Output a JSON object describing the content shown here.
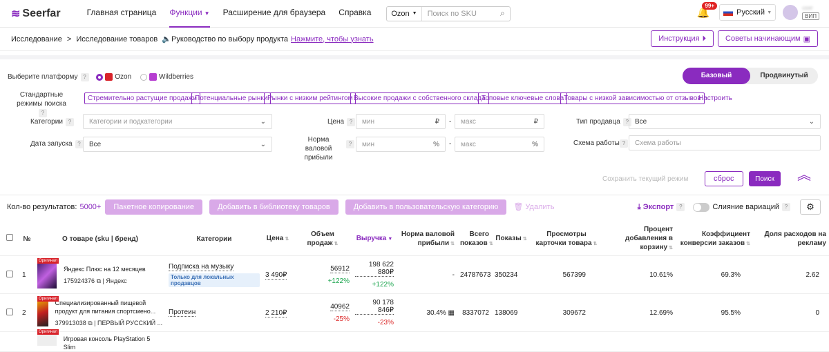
{
  "header": {
    "logo": "Seerfar",
    "nav": [
      {
        "label": "Главная страница"
      },
      {
        "label": "Функции"
      },
      {
        "label": "Расширение для браузера"
      },
      {
        "label": "Справка"
      }
    ],
    "search": {
      "platform": "Ozon",
      "placeholder": "Поиск по SKU"
    },
    "notification_badge": "99+",
    "language": "Русский",
    "user": {
      "name": "user",
      "vip": "ВИП"
    }
  },
  "breadcrumb": {
    "root": "Исследование",
    "sep": ">",
    "current": "Исследование товаров",
    "guide": "Руководство по выбору продукта",
    "guide_link": "Нажмите, чтобы узнать",
    "instruction": "Инструкция",
    "tips": "Советы начинающим"
  },
  "filters": {
    "platform_label": "Выберите платформу",
    "platform_ozon": "Ozon",
    "platform_wb": "Wildberries",
    "modes_label": "Стандартные режимы поиска",
    "modes": [
      "Стремительно растущие продажи",
      "Потенциальные рынки",
      "Рынки с низким рейтингом",
      "Высокие продажи с собственного склада",
      "Топовые ключевые слова",
      "Товары с низкой зависимостью от отзывов"
    ],
    "configure": "Настроить",
    "category_label": "Категории",
    "category_placeholder": "Категории и подкатегории",
    "price_label": "Цена",
    "min": "мин",
    "max": "макс",
    "currency": "₽",
    "dash": "-",
    "seller_label": "Тип продавца",
    "seller_value": "Все",
    "launch_label": "Дата запуска",
    "launch_value": "Все",
    "margin_label": "Норма валовой прибыли",
    "percent": "%",
    "scheme_label": "Схема работы",
    "scheme_placeholder": "Схема работы",
    "basic": "Базовый",
    "advanced": "Продвинутый",
    "save_mode": "Сохранить текущий режим",
    "reset": "сброс",
    "search": "Поиск"
  },
  "actions": {
    "results_label": "Кол-во результатов:",
    "results_count": "5000+",
    "batch_copy": "Пакетное копирование",
    "add_library": "Добавить в библиотеку товаров",
    "add_category": "Добавить в пользовательскую категорию",
    "delete": "Удалить",
    "export": "Экспорт",
    "merge": "Слияние вариаций"
  },
  "table": {
    "columns": {
      "no": "№",
      "about": "О товаре (sku | бренд)",
      "category": "Категории",
      "price": "Цена",
      "sales": "Объем продаж",
      "revenue": "Выручка",
      "margin": "Норма валовой прибыли",
      "total_views": "Всего показов",
      "views": "Показы",
      "card_views": "Просмотры карточки товара",
      "cart_rate": "Процент добавления в корзину",
      "conversion": "Коэффициент конверсии заказов",
      "ad_share": "Доля расходов на рекламу"
    },
    "rows": [
      {
        "no": "1",
        "badge": "Оригинал",
        "name": "Яндекс Плюс на 12 месяцев",
        "sku": "175924376",
        "brand": "Яндекс",
        "category": "Подписка на музыку",
        "tag": "Только для локальных продавцов",
        "price": "3 490₽",
        "sales": "56912",
        "sales_delta": "+122%",
        "revenue": "198 622 880₽",
        "revenue_delta": "+122%",
        "margin": "-",
        "total_views": "24787673",
        "views": "350234",
        "card_views": "567399",
        "cart_rate": "10.61%",
        "conversion": "69.3%",
        "ad_share": "2.62"
      },
      {
        "no": "2",
        "badge": "Оригинал",
        "name": "Специализированный пищевой продукт для питания спортсмено...",
        "sku": "379913038",
        "brand": "ПЕРВЫЙ РУССКИЙ ...",
        "category": "Протеин",
        "tag": "",
        "price": "2 210₽",
        "sales": "40962",
        "sales_delta": "-25%",
        "revenue": "90 178 846₽",
        "revenue_delta": "-23%",
        "margin": "30.4%",
        "total_views": "8337072",
        "views": "138069",
        "card_views": "309672",
        "cart_rate": "12.69%",
        "conversion": "95.5%",
        "ad_share": "0"
      },
      {
        "badge": "Оригинал",
        "name": "Игровая консоль PlayStation 5 Slim"
      }
    ]
  }
}
